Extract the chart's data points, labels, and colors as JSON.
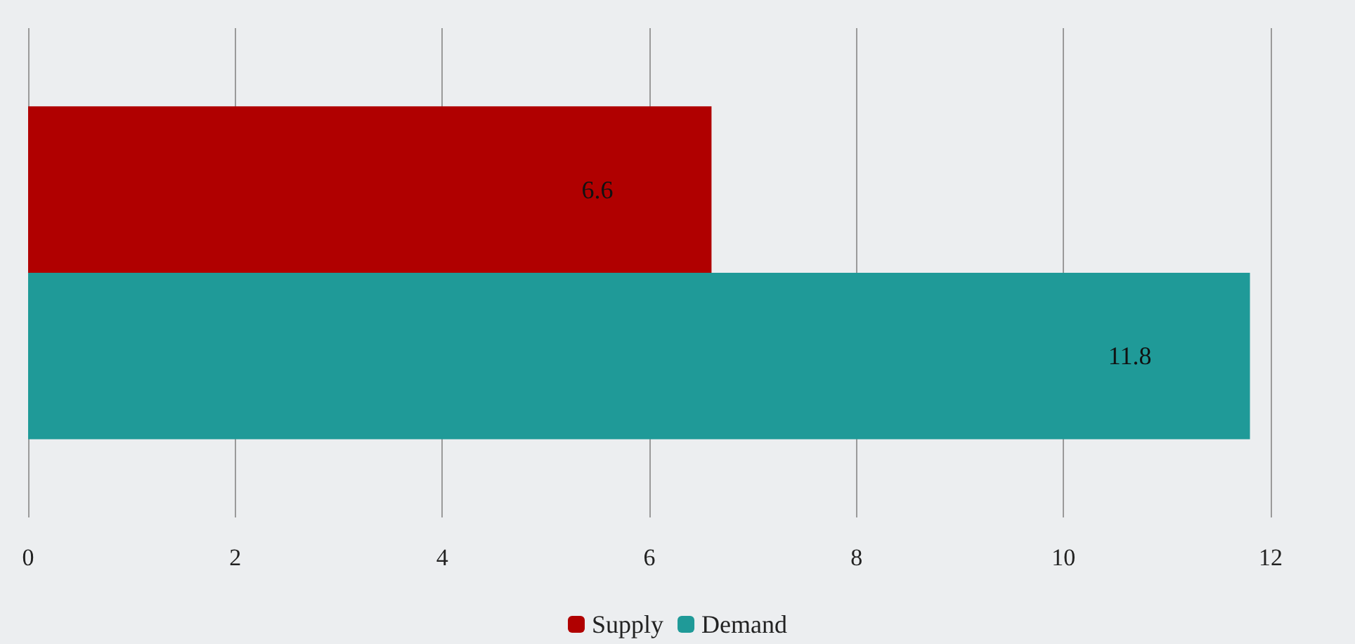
{
  "chart_data": {
    "type": "bar",
    "orientation": "horizontal",
    "categories": [
      null
    ],
    "series": [
      {
        "name": "Supply",
        "color": "#b00000",
        "values": [
          6.6
        ]
      },
      {
        "name": "Demand",
        "color": "#1f9a98",
        "values": [
          11.8
        ]
      }
    ],
    "xlim": [
      0,
      12
    ],
    "xticks": [
      0,
      2,
      4,
      6,
      8,
      10,
      12
    ],
    "grid": "x",
    "legend": "bottom",
    "data_labels": true
  }
}
